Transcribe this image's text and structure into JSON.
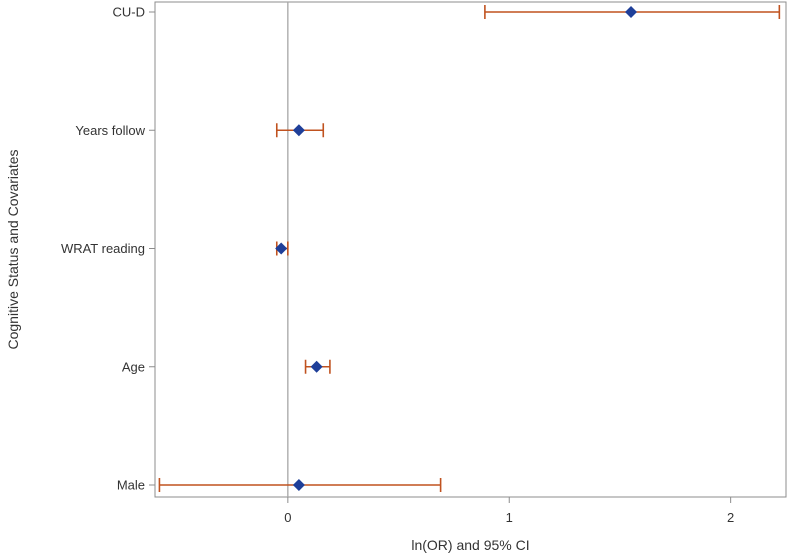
{
  "chart_data": {
    "type": "forest",
    "xlabel": "ln(OR) and 95% CI",
    "ylabel": "Cognitive Status and Covariates",
    "xlim": [
      -0.6,
      2.25
    ],
    "xticks": [
      {
        "value": 0,
        "label": "0"
      },
      {
        "value": 1,
        "label": "1"
      },
      {
        "value": 2,
        "label": "2"
      }
    ],
    "reference_line": 0,
    "grid": false,
    "colors": {
      "marker": "#1f3f99",
      "ci": "#c0521f",
      "reference": "#a6a6a6",
      "frame": "#8c8c8c"
    },
    "rows": [
      {
        "label": "CU-D",
        "estimate": 1.55,
        "lower": 0.89,
        "upper": 2.22
      },
      {
        "label": "Years follow",
        "estimate": 0.05,
        "lower": -0.05,
        "upper": 0.16
      },
      {
        "label": "WRAT reading",
        "estimate": -0.03,
        "lower": -0.05,
        "upper": 0.0
      },
      {
        "label": "Age",
        "estimate": 0.13,
        "lower": 0.08,
        "upper": 0.19
      },
      {
        "label": "Male",
        "estimate": 0.05,
        "lower": -0.58,
        "upper": 0.69
      }
    ]
  }
}
